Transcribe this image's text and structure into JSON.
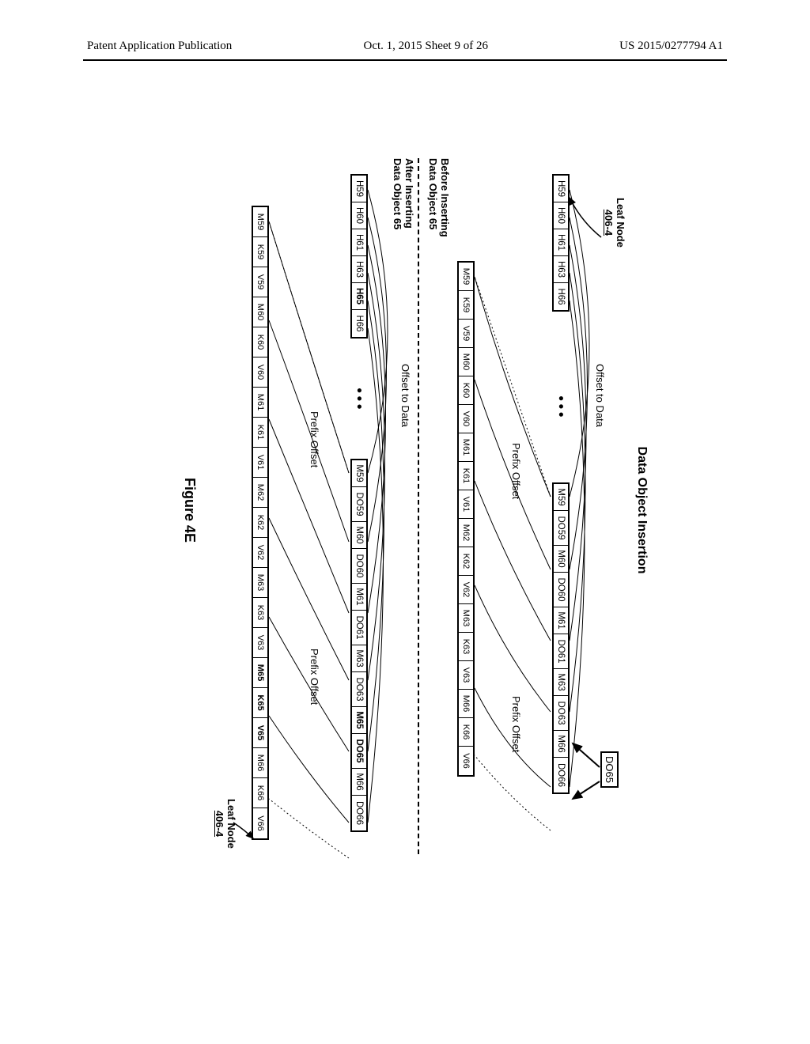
{
  "header": {
    "left": "Patent Application Publication",
    "center": "Oct. 1, 2015   Sheet 9 of 26",
    "right": "US 2015/0277794 A1"
  },
  "title": "Data Object Insertion",
  "leaf_top": {
    "label": "Leaf Node",
    "sub": "406-4"
  },
  "leaf_bottom": {
    "label": "Leaf Node",
    "sub": "406-4"
  },
  "do65": "DO65",
  "offset1": "Offset to Data",
  "offset2": "Offset to Data",
  "prefix1": "Prefix Offset",
  "prefix2": "Prefix Offset",
  "prefix3": "Prefix Offset",
  "before_label": "Before Inserting\nData Object 65",
  "after_label": "After Inserting\nData Object 65",
  "figure": "Figure 4E",
  "row1": [
    "H59",
    "H60",
    "H61",
    "H63",
    "H66"
  ],
  "row1b": [
    "M59",
    "DO59",
    "M60",
    "DO60",
    "M61",
    "DO61",
    "M63",
    "DO63",
    "M66",
    "DO66"
  ],
  "row2": [
    "M59",
    "K59",
    "V59",
    "M60",
    "K60",
    "V60",
    "M61",
    "K61",
    "V61",
    "M62",
    "K62",
    "V62",
    "M63",
    "K63",
    "V63",
    "M66",
    "K66",
    "V66"
  ],
  "row3": [
    "H59",
    "H60",
    "H61",
    "H63",
    "H65",
    "H66"
  ],
  "row3b": [
    "M59",
    "DO59",
    "M60",
    "DO60",
    "M61",
    "DO61",
    "M63",
    "DO63",
    "M65",
    "DO65",
    "M66",
    "DO66"
  ],
  "row4": [
    "M59",
    "K59",
    "V59",
    "M60",
    "K60",
    "V60",
    "M61",
    "K61",
    "V61",
    "M62",
    "K62",
    "V62",
    "M63",
    "K63",
    "V63",
    "M65",
    "K65",
    "V65",
    "M66",
    "K66",
    "V66"
  ],
  "bold_cells_row3": [
    "H65"
  ],
  "bold_cells_row3b": [
    "M65",
    "DO65"
  ],
  "bold_cells_row4": [
    "M65",
    "K65",
    "V65"
  ],
  "colors": {
    "line": "#000000",
    "bg": "#ffffff"
  }
}
